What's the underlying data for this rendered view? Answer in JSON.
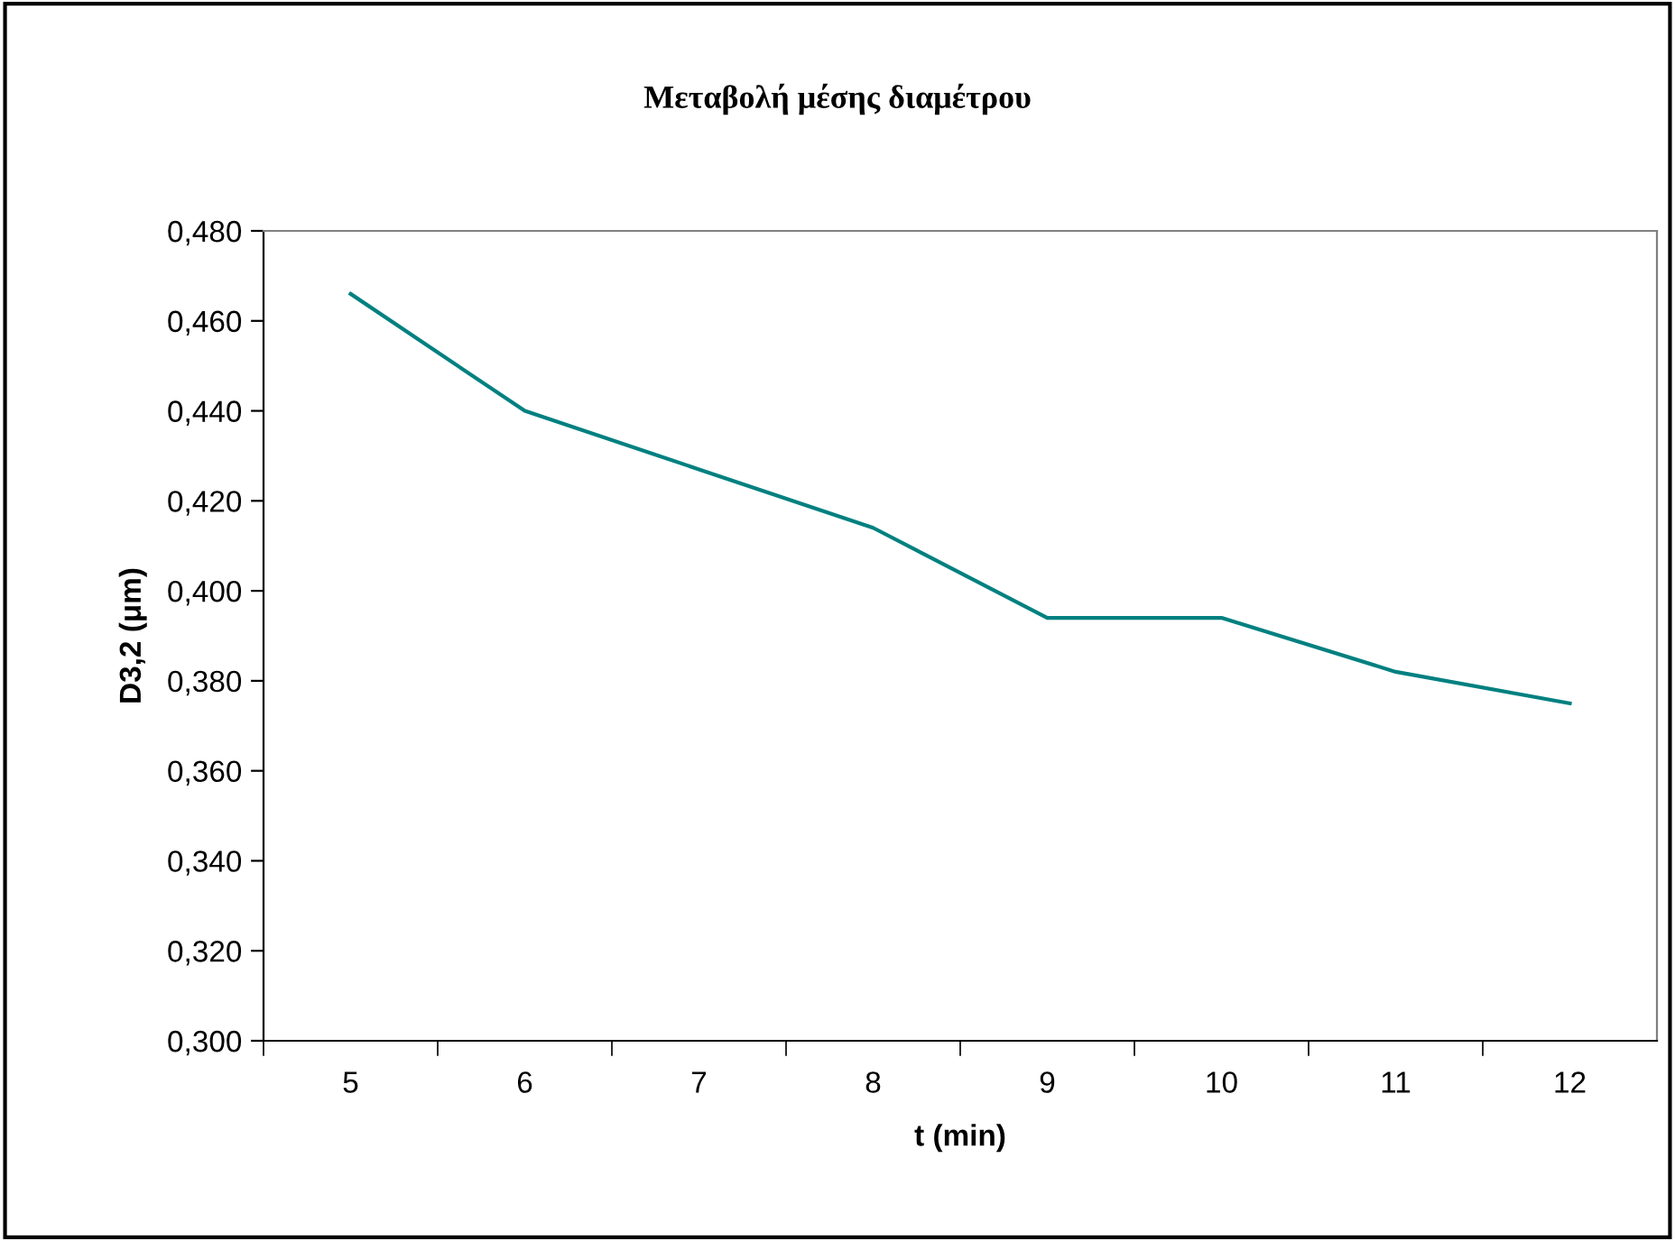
{
  "chart_data": {
    "type": "line",
    "title": "Μεταβολή μέσης διαμέτρου",
    "xlabel": "t (min)",
    "ylabel": "D3,2 (μm)",
    "categories": [
      "5",
      "6",
      "7",
      "8",
      "9",
      "10",
      "11",
      "12"
    ],
    "series": [
      {
        "color": "#008080",
        "values": [
          0.466,
          0.44,
          0.427,
          0.414,
          0.394,
          0.394,
          0.382,
          0.375
        ]
      }
    ],
    "ylim": [
      0.3,
      0.48
    ],
    "yticks": [
      {
        "value": 0.3,
        "label": "0,300"
      },
      {
        "value": 0.32,
        "label": "0,320"
      },
      {
        "value": 0.34,
        "label": "0,340"
      },
      {
        "value": 0.36,
        "label": "0,360"
      },
      {
        "value": 0.38,
        "label": "0,380"
      },
      {
        "value": 0.4,
        "label": "0,400"
      },
      {
        "value": 0.42,
        "label": "0,420"
      },
      {
        "value": 0.44,
        "label": "0,440"
      },
      {
        "value": 0.46,
        "label": "0,460"
      },
      {
        "value": 0.48,
        "label": "0,480"
      }
    ],
    "grid": false,
    "legend": false,
    "marker": "none",
    "line_style": "solid"
  }
}
